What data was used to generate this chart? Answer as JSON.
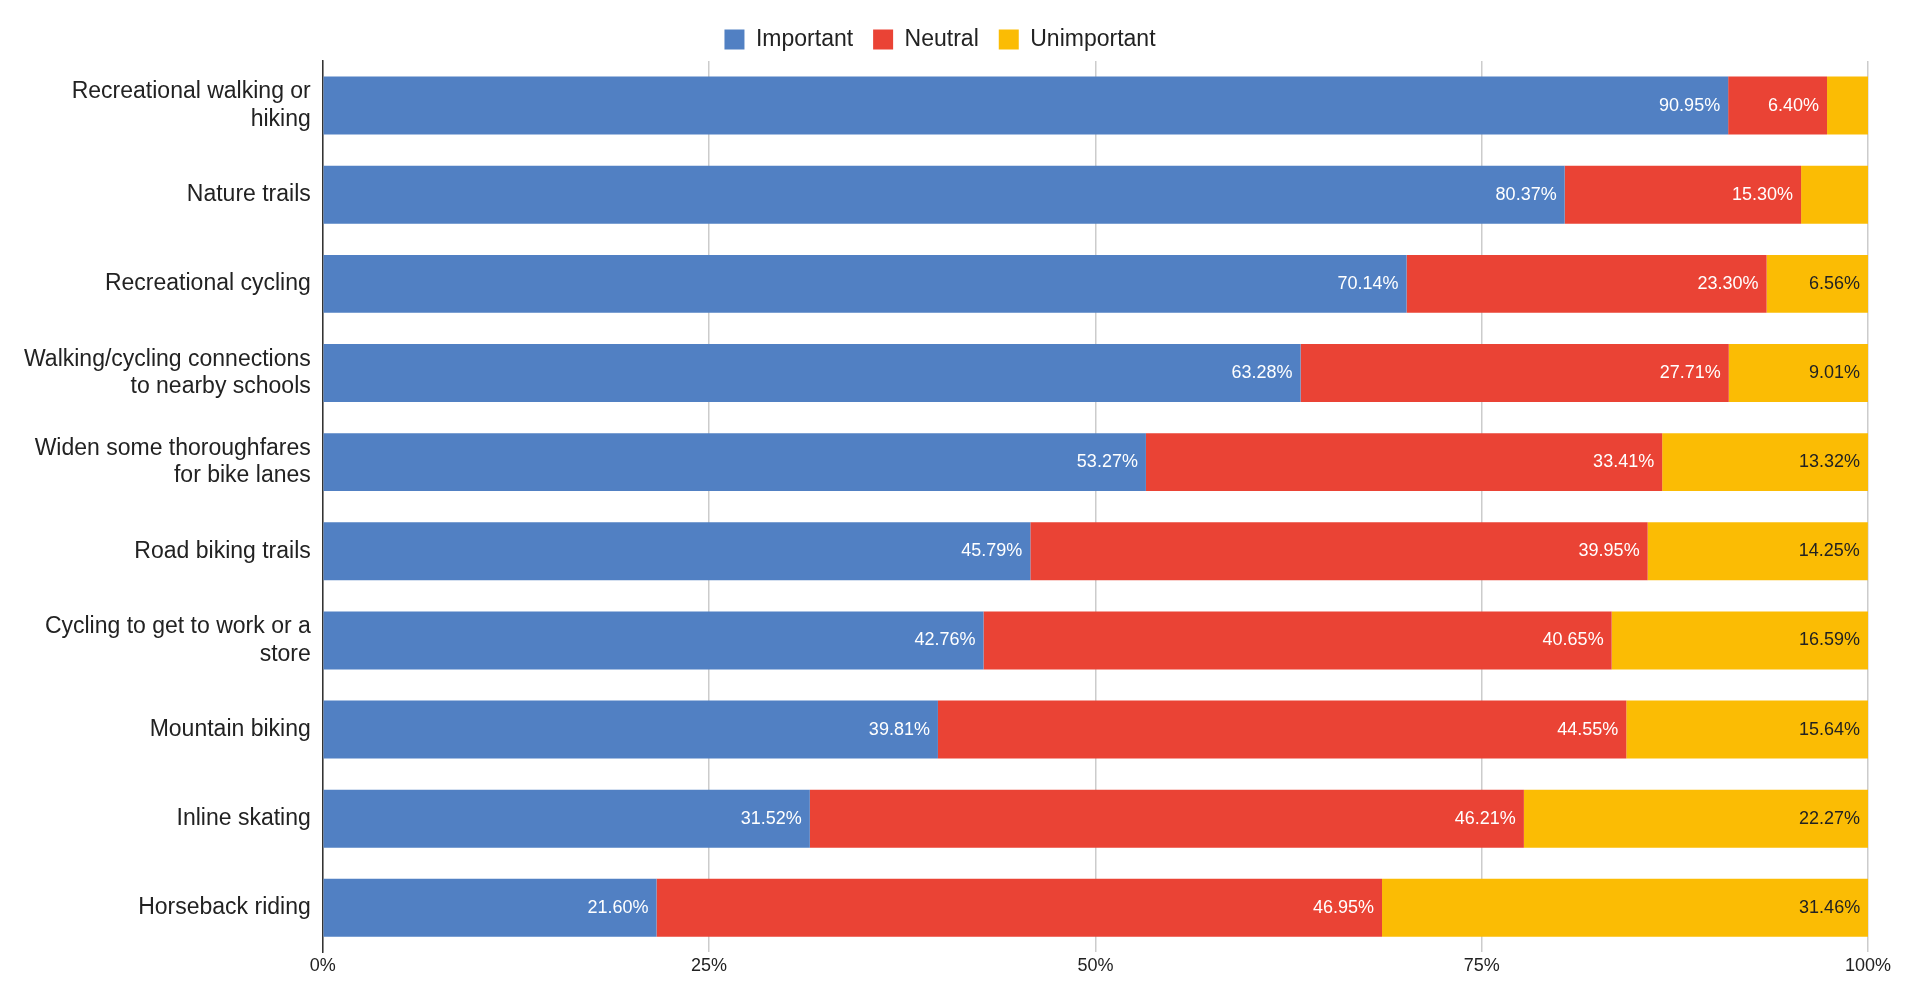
{
  "chart_data": {
    "type": "bar",
    "orientation": "horizontal",
    "stacked": true,
    "categories": [
      "Recreational walking or hiking",
      "Nature trails",
      "Recreational cycling",
      "Walking/cycling connections to nearby schools",
      "Widen some thoroughfares for bike lanes",
      "Road biking trails",
      "Cycling to get to work or a store",
      "Mountain biking",
      "Inline skating",
      "Horseback riding"
    ],
    "series": [
      {
        "name": "Important",
        "color": "#5180c3",
        "values": [
          90.95,
          80.37,
          70.14,
          63.28,
          53.27,
          45.79,
          42.76,
          39.81,
          31.52,
          21.6
        ],
        "value_labels": [
          "90.95%",
          "80.37%",
          "70.14%",
          "63.28%",
          "53.27%",
          "45.79%",
          "42.76%",
          "39.81%",
          "31.52%",
          "21.60%"
        ]
      },
      {
        "name": "Neutral",
        "color": "#ea4335",
        "values": [
          6.4,
          15.3,
          23.3,
          27.71,
          33.41,
          39.95,
          40.65,
          44.55,
          46.21,
          46.95
        ],
        "value_labels": [
          "6.40%",
          "15.30%",
          "23.30%",
          "27.71%",
          "33.41%",
          "39.95%",
          "40.65%",
          "44.55%",
          "46.21%",
          "46.95%"
        ]
      },
      {
        "name": "Unimportant",
        "color": "#fbbc04",
        "values": [
          2.65,
          4.33,
          6.56,
          9.01,
          13.32,
          14.25,
          16.59,
          15.64,
          22.27,
          31.46
        ],
        "value_labels": [
          null,
          null,
          "6.56%",
          "9.01%",
          "13.32%",
          "14.25%",
          "16.59%",
          "15.64%",
          "22.27%",
          "31.46%"
        ]
      }
    ],
    "xlim": [
      0,
      100
    ],
    "xticks": [
      {
        "value": 0,
        "label": "0%"
      },
      {
        "value": 25,
        "label": "25%"
      },
      {
        "value": 50,
        "label": "50%"
      },
      {
        "value": 75,
        "label": "75%"
      },
      {
        "value": 100,
        "label": "100%"
      }
    ],
    "grid": "x",
    "legend": "top"
  }
}
